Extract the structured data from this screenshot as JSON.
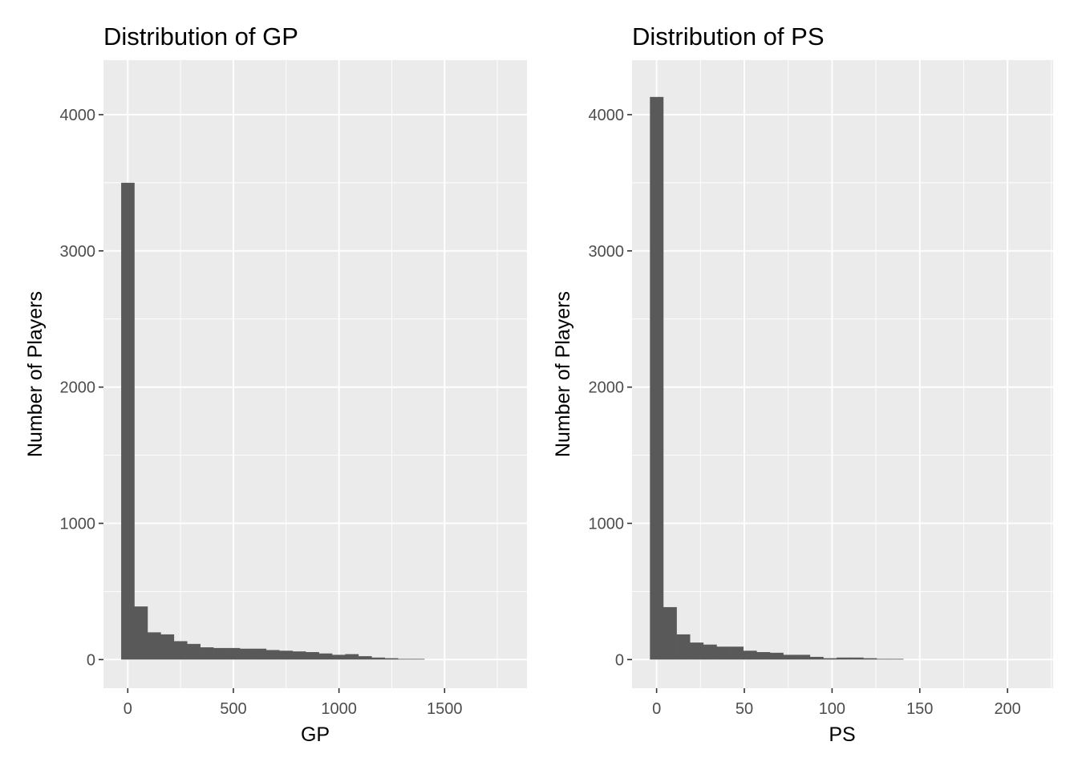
{
  "chart_data": [
    {
      "type": "bar",
      "title": "Distribution of GP",
      "xlabel": "GP",
      "ylabel": "Number of Players",
      "xlim": [
        -115,
        1890
      ],
      "ylim": [
        -210,
        4400
      ],
      "xticks": [
        0,
        500,
        1000,
        1500
      ],
      "xtick_labels": [
        "0",
        "500",
        "1000",
        "1500"
      ],
      "yticks": [
        0,
        1000,
        2000,
        3000,
        4000
      ],
      "ytick_labels": [
        "0",
        "1000",
        "2000",
        "3000",
        "4000"
      ],
      "grid": true,
      "bin_width": 62.4,
      "bins_start": [
        -31.2,
        31.2,
        93.6,
        156,
        218.4,
        280.8,
        343.2,
        405.6,
        468,
        530.4,
        592.8,
        655.2,
        717.6,
        780,
        842.4,
        904.8,
        967.2,
        1029.6,
        1092,
        1154.4,
        1216.8,
        1279.2,
        1341.6
      ],
      "values": [
        3500,
        390,
        200,
        185,
        135,
        115,
        90,
        85,
        85,
        80,
        80,
        70,
        65,
        60,
        55,
        45,
        35,
        40,
        25,
        15,
        10,
        5,
        5
      ],
      "bar_color": "#595959"
    },
    {
      "type": "bar",
      "title": "Distribution of PS",
      "xlabel": "PS",
      "ylabel": "Number of Players",
      "xlim": [
        -14,
        226
      ],
      "ylim": [
        -210,
        4400
      ],
      "xticks": [
        0,
        50,
        100,
        150,
        200
      ],
      "xtick_labels": [
        "0",
        "50",
        "100",
        "150",
        "200"
      ],
      "yticks": [
        0,
        1000,
        2000,
        3000,
        4000
      ],
      "ytick_labels": [
        "0",
        "1000",
        "2000",
        "3000",
        "4000"
      ],
      "grid": true,
      "bin_width": 7.6,
      "bins_start": [
        -3.8,
        3.8,
        11.4,
        19,
        26.6,
        34.2,
        41.8,
        49.4,
        57,
        64.6,
        72.2,
        79.8,
        87.4,
        95,
        102.6,
        110.2,
        117.8,
        125.4,
        133
      ],
      "values": [
        4130,
        385,
        185,
        125,
        110,
        95,
        95,
        65,
        55,
        50,
        35,
        35,
        20,
        10,
        15,
        15,
        10,
        5,
        5
      ],
      "bar_color": "#595959"
    }
  ]
}
